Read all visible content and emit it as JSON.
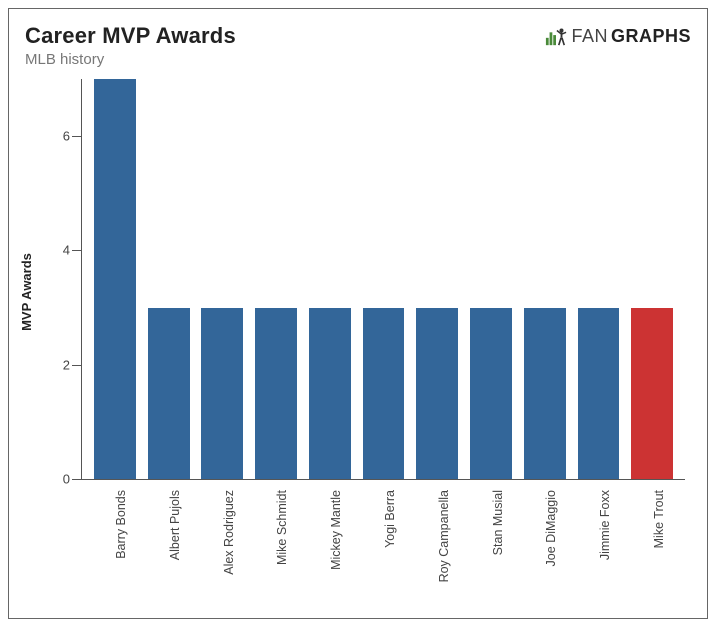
{
  "header": {
    "title": "Career MVP Awards",
    "subtitle": "MLB history",
    "logo_fan": "FAN",
    "logo_graphs": "GRAPHS"
  },
  "chart": {
    "type": "bar",
    "ylabel": "MVP Awards",
    "ylim": [
      0,
      7
    ],
    "yticks": [
      0,
      2,
      4,
      6
    ],
    "background_color": "#ffffff",
    "axis_color": "#555555",
    "tick_font_size": 13,
    "ylabel_font_size": 13,
    "xlabel_font_size": 12.5,
    "bar_width": 0.78,
    "default_bar_color": "#336699",
    "highlight_bar_color": "#cc3333",
    "categories": [
      "Barry Bonds",
      "Albert Pujols",
      "Alex Rodriguez",
      "Mike Schmidt",
      "Mickey Mantle",
      "Yogi Berra",
      "Roy Campanella",
      "Stan Musial",
      "Joe DiMaggio",
      "Jimmie Foxx",
      "Mike Trout"
    ],
    "values": [
      7,
      3,
      3,
      3,
      3,
      3,
      3,
      3,
      3,
      3,
      3
    ],
    "bar_colors": [
      "#336699",
      "#336699",
      "#336699",
      "#336699",
      "#336699",
      "#336699",
      "#336699",
      "#336699",
      "#336699",
      "#336699",
      "#cc3333"
    ]
  }
}
